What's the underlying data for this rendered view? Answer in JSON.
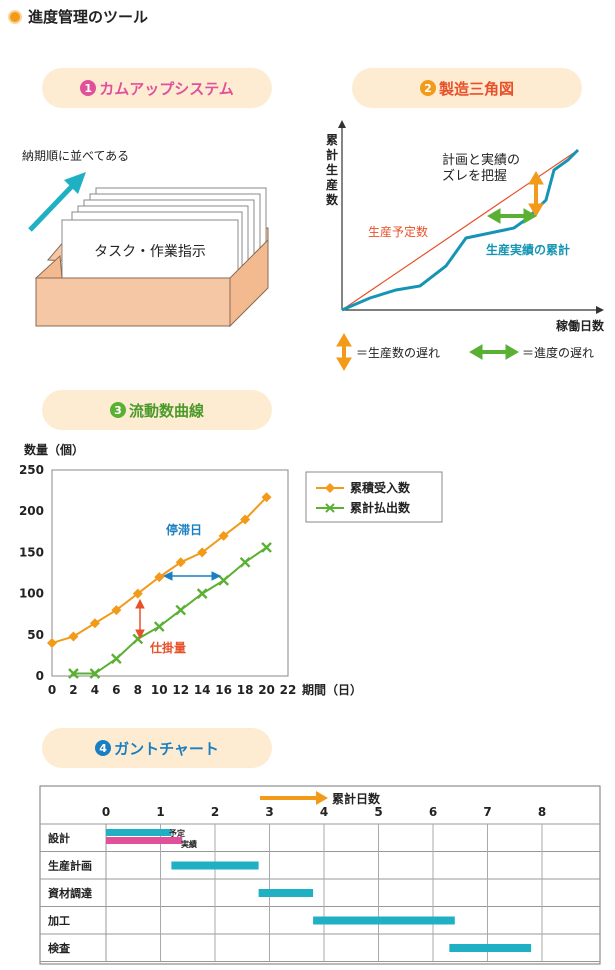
{
  "header": {
    "title": "進度管理のツール"
  },
  "tool1": {
    "number": "1",
    "title": "カムアップシステム",
    "arrow_label": "納期順に並べてある",
    "card_label": "タスク・作業指示"
  },
  "tool2": {
    "number": "2",
    "title": "製造三角図",
    "ylabel": [
      "累",
      "計",
      "生",
      "産",
      "数"
    ],
    "xlabel": "稼働日数",
    "planned_label": "生産予定数",
    "actual_label": "生産実績の累計",
    "gap_label": [
      "計画と実績の",
      "ズレを把握"
    ],
    "legend_vertical": "＝生産数の遅れ",
    "legend_horizontal": "＝進度の遅れ",
    "colors": {
      "planned": "#e8502a",
      "actual": "#1595b3",
      "vertical": "#f29a1a",
      "horizontal": "#5ab033"
    }
  },
  "tool3": {
    "number": "3",
    "title": "流動数曲線"
  },
  "chart_data": {
    "type": "line",
    "ylabel": "数量（個）",
    "xlabel": "期間（日）",
    "xlim": [
      0,
      22
    ],
    "ylim": [
      0,
      250
    ],
    "xticks": [
      "0",
      "2",
      "4",
      "6",
      "8",
      "10",
      "12",
      "14",
      "16",
      "18",
      "20",
      "22"
    ],
    "yticks": [
      "0",
      "50",
      "100",
      "150",
      "200",
      "250"
    ],
    "series": [
      {
        "name": "累積受入数",
        "color": "#f29a1a",
        "marker": "diamond",
        "x": [
          0,
          2,
          4,
          6,
          8,
          10,
          12,
          14,
          16,
          18,
          20
        ],
        "y": [
          40,
          48,
          64,
          80,
          100,
          120,
          138,
          150,
          170,
          190,
          217
        ]
      },
      {
        "name": "累計払出数",
        "color": "#5ab033",
        "marker": "x",
        "x": [
          2,
          4,
          6,
          8,
          10,
          12,
          14,
          16,
          18,
          20
        ],
        "y": [
          3,
          3,
          21,
          45,
          60,
          80,
          100,
          116,
          138,
          156
        ]
      }
    ],
    "annotations": [
      {
        "label": "停滞日",
        "color": "#1a7fc1"
      },
      {
        "label": "仕掛量",
        "color": "#e8502a"
      }
    ]
  },
  "tool4": {
    "number": "4",
    "title": "ガントチャート",
    "axis_label": "累計日数",
    "day_ticks": [
      "0",
      "1",
      "2",
      "3",
      "4",
      "5",
      "6",
      "7",
      "8"
    ],
    "rows": [
      {
        "label": "設計"
      },
      {
        "label": "生産計画"
      },
      {
        "label": "資材調達"
      },
      {
        "label": "加工"
      },
      {
        "label": "検査"
      }
    ],
    "bar_plan_label": "予定",
    "bar_actual_label": "実績",
    "bars": [
      {
        "row": 0,
        "start": 0,
        "end": 1.2,
        "kind": "plan"
      },
      {
        "row": 0,
        "start": 0,
        "end": 1.4,
        "kind": "actual"
      },
      {
        "row": 1,
        "start": 1.2,
        "end": 2.8,
        "kind": "plan"
      },
      {
        "row": 2,
        "start": 2.8,
        "end": 3.8,
        "kind": "plan"
      },
      {
        "row": 3,
        "start": 3.8,
        "end": 6.4,
        "kind": "plan"
      },
      {
        "row": 4,
        "start": 6.3,
        "end": 7.8,
        "kind": "plan"
      }
    ],
    "colors": {
      "plan": "#1fb0c4",
      "actual": "#e0519a",
      "axis_arrow": "#f29a1a"
    }
  }
}
